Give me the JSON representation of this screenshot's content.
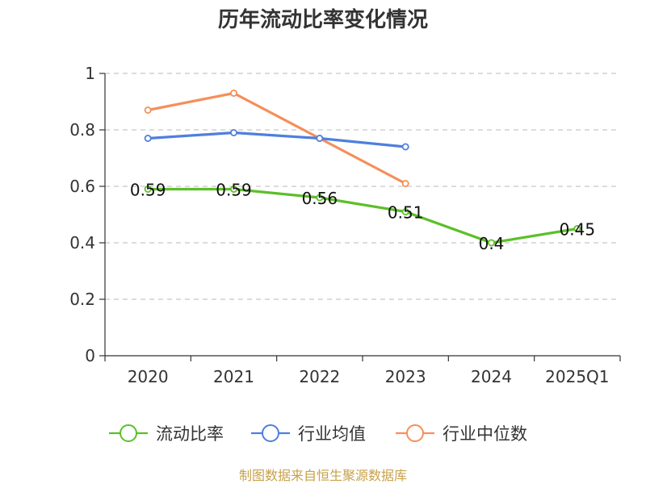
{
  "colors": {
    "current_ratio": "#5cbf2a",
    "industry_avg": "#4f7fde",
    "industry_median": "#f58f5a",
    "grid": "#c8c8c8",
    "axis": "#333333",
    "source": "#c7a14a"
  },
  "footer": {
    "source": "制图数据来自恒生聚源数据库"
  },
  "chart_data": {
    "type": "line",
    "title": "历年流动比率变化情况",
    "categories": [
      "2020",
      "2021",
      "2022",
      "2023",
      "2024",
      "2025Q1"
    ],
    "y_ticks": [
      "0",
      "0.2",
      "0.4",
      "0.6",
      "0.8",
      "1"
    ],
    "ylim": [
      0,
      1
    ],
    "grid": true,
    "legend_position": "bottom",
    "series": [
      {
        "name": "流动比率",
        "color": "#5cbf2a",
        "values": [
          0.59,
          0.59,
          0.56,
          0.51,
          0.4,
          0.45
        ],
        "labels": [
          "0.59",
          "0.59",
          "0.56",
          "0.51",
          "0.4",
          "0.45"
        ],
        "show_labels": true
      },
      {
        "name": "行业均值",
        "color": "#4f7fde",
        "values": [
          0.77,
          0.79,
          0.77,
          0.74,
          null,
          null
        ],
        "show_labels": false
      },
      {
        "name": "行业中位数",
        "color": "#f58f5a",
        "values": [
          0.87,
          0.93,
          0.77,
          0.61,
          null,
          null
        ],
        "show_labels": false
      }
    ]
  }
}
